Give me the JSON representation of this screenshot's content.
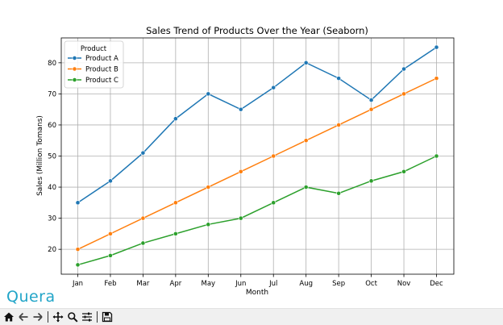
{
  "chart_data": {
    "type": "line",
    "title": "Sales Trend of Products Over the Year (Seaborn)",
    "xlabel": "Month",
    "ylabel": "Sales (Million Tomans)",
    "categories": [
      "Jan",
      "Feb",
      "Mar",
      "Apr",
      "May",
      "Jun",
      "Jul",
      "Aug",
      "Sep",
      "Oct",
      "Nov",
      "Dec"
    ],
    "ylim": [
      12,
      88
    ],
    "yticks": [
      20,
      30,
      40,
      50,
      60,
      70,
      80
    ],
    "grid": true,
    "legend": {
      "title": "Product",
      "position": "top-left"
    },
    "series": [
      {
        "name": "Product A",
        "color": "#1f77b4",
        "values": [
          35,
          42,
          51,
          62,
          70,
          65,
          72,
          80,
          75,
          68,
          78,
          85
        ]
      },
      {
        "name": "Product B",
        "color": "#ff7f0e",
        "values": [
          20,
          25,
          30,
          35,
          40,
          45,
          50,
          55,
          60,
          65,
          70,
          75
        ]
      },
      {
        "name": "Product C",
        "color": "#2ca02c",
        "values": [
          15,
          18,
          22,
          25,
          28,
          30,
          35,
          40,
          38,
          42,
          45,
          50
        ]
      }
    ]
  },
  "brand": {
    "name": "Quera",
    "color": "#22a5c8"
  },
  "toolbar": {
    "buttons": [
      {
        "name": "home-icon"
      },
      {
        "name": "back-icon"
      },
      {
        "name": "forward-icon"
      },
      {
        "name": "pan-icon"
      },
      {
        "name": "zoom-icon"
      },
      {
        "name": "configure-subplots-icon"
      },
      {
        "name": "save-icon"
      }
    ]
  }
}
